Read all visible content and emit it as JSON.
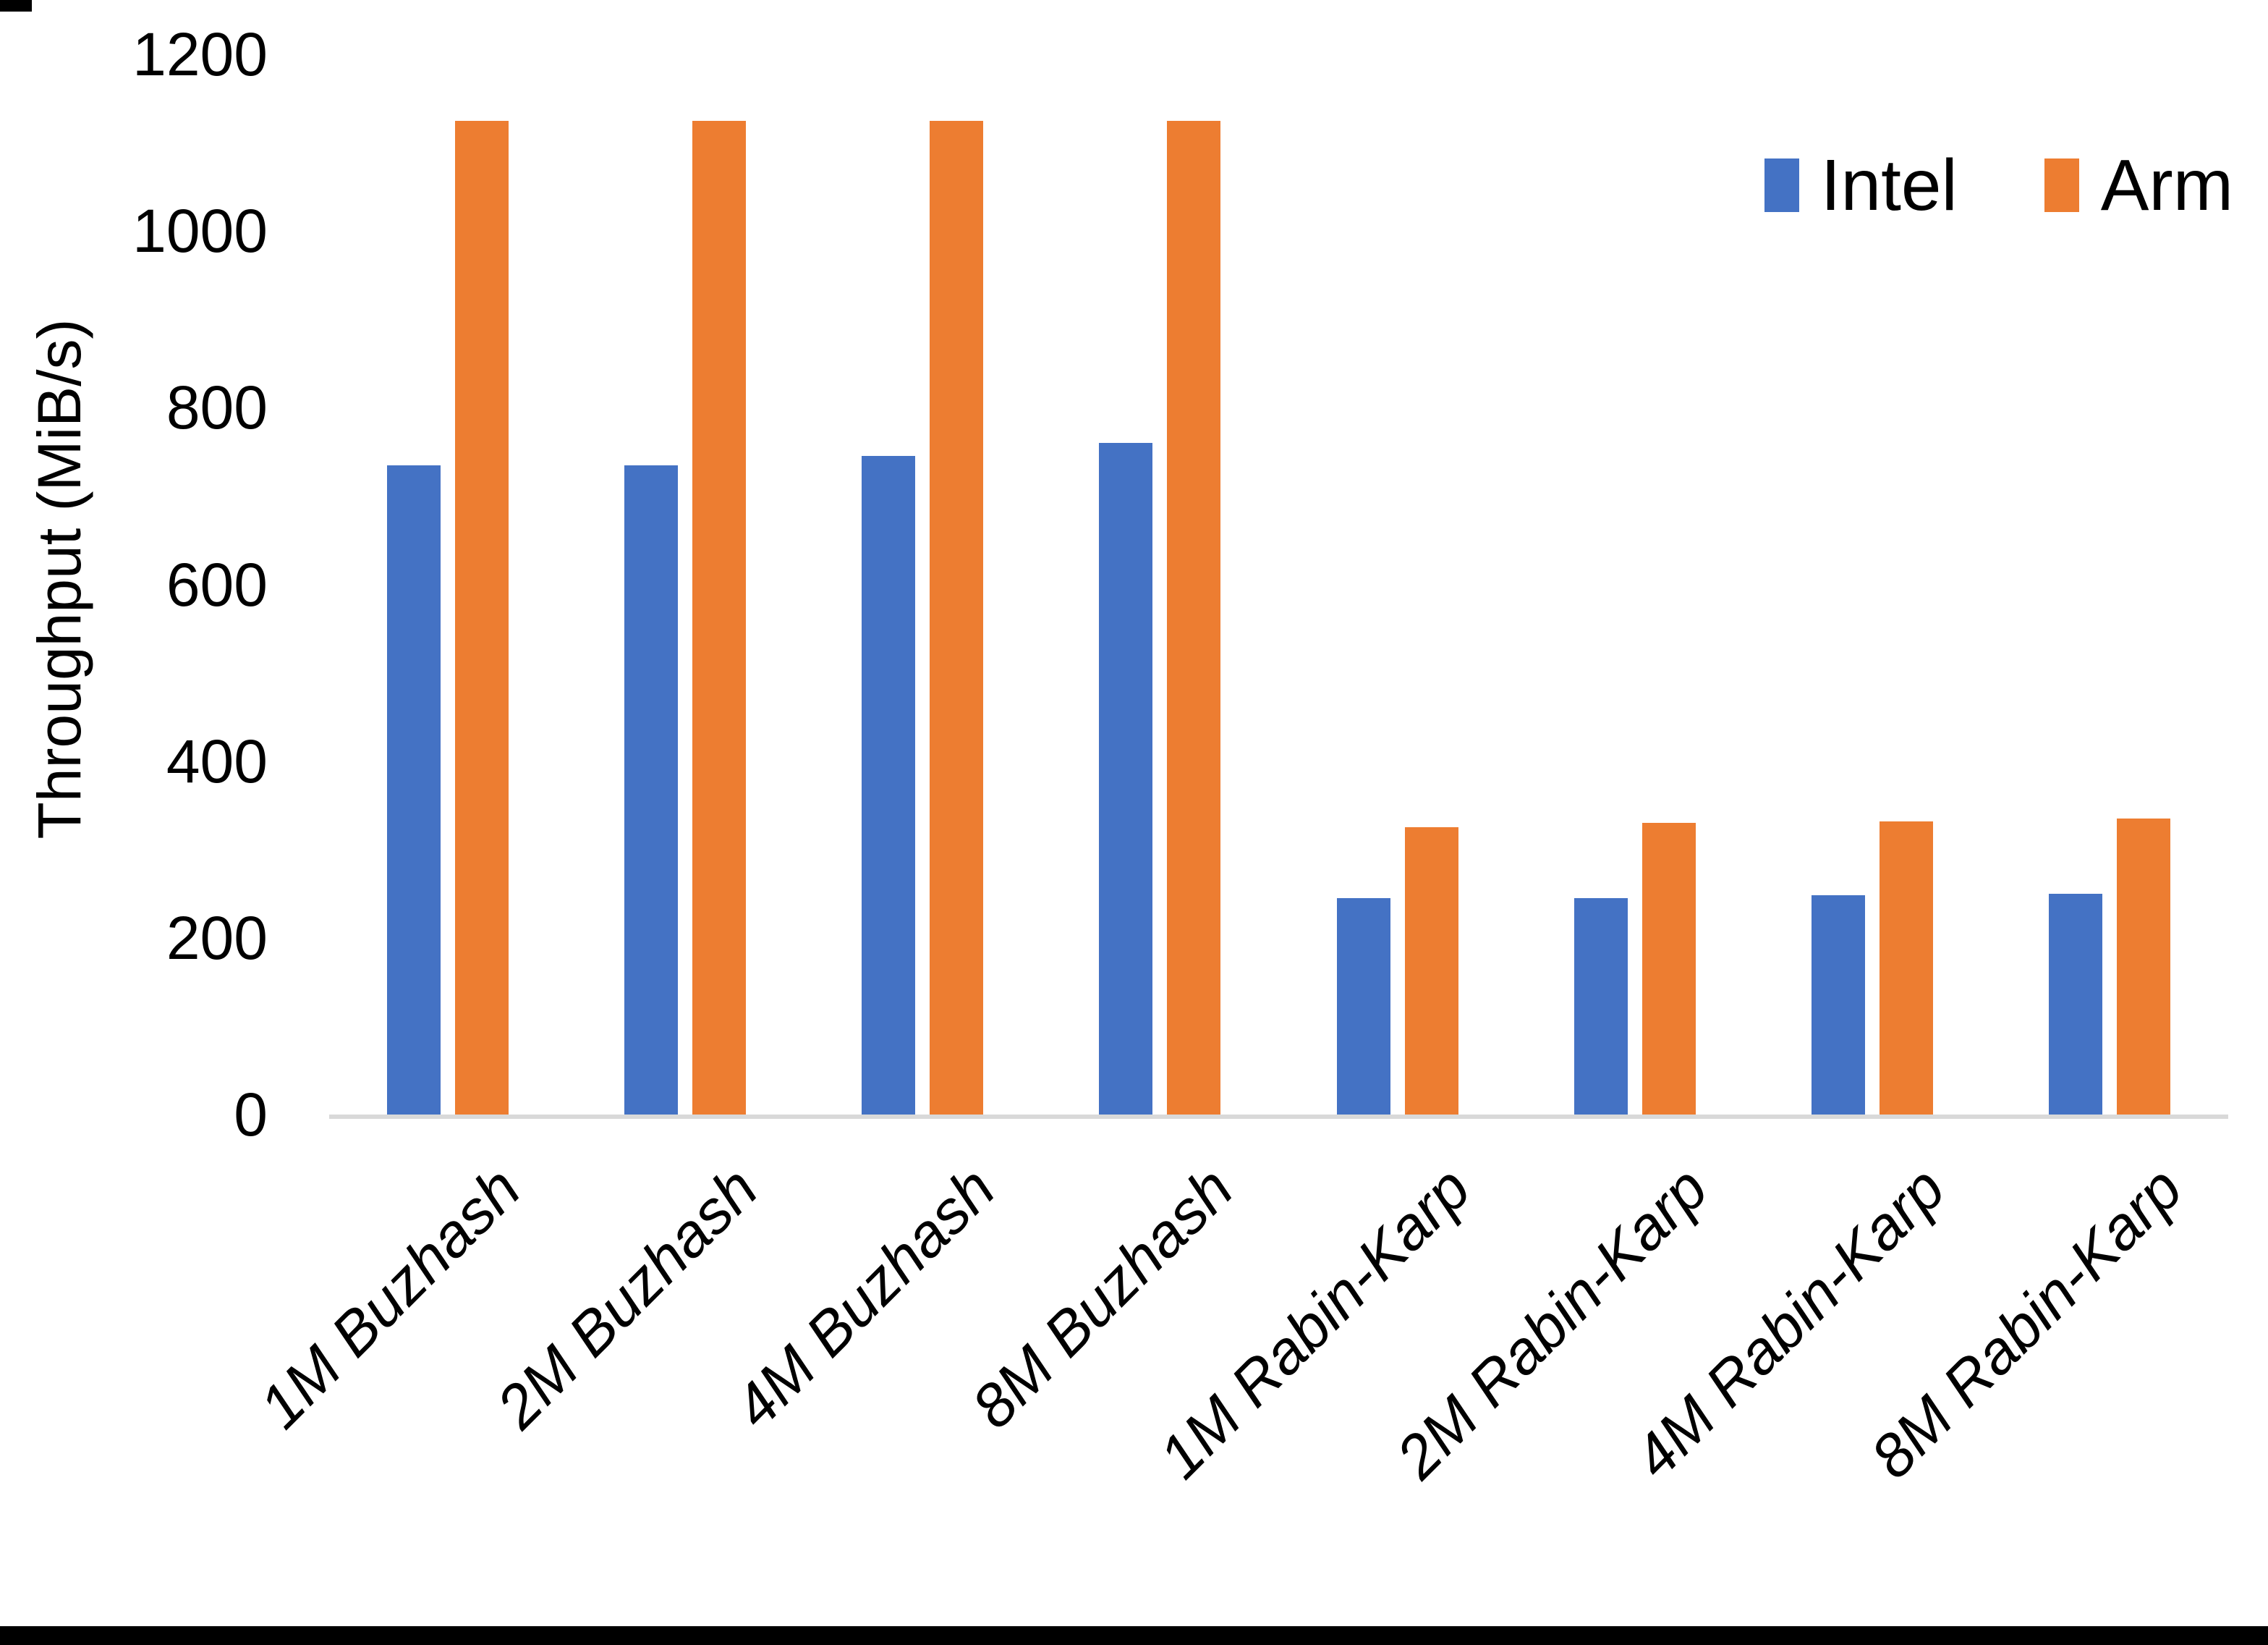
{
  "page": {
    "background": "#ffffff",
    "border_color": "#000000",
    "axis_line_color": "#d9d9d9"
  },
  "chart_data": {
    "type": "bar",
    "title": "",
    "xlabel": "",
    "ylabel": "Throughput (MiB/s)",
    "categories": [
      "1M Buzhash",
      "2M Buzhash",
      "4M Buzhash",
      "8M Buzhash",
      "1M Rabin-Karp",
      "2M Rabin-Karp",
      "4M Rabin-Karp",
      "8M Rabin-Karp"
    ],
    "series": [
      {
        "name": "Intel",
        "color": "#4472C4",
        "values": [
          735,
          735,
          745,
          760,
          245,
          245,
          248,
          250
        ]
      },
      {
        "name": "Arm",
        "color": "#ED7D31",
        "values": [
          1125,
          1125,
          1125,
          1125,
          325,
          330,
          332,
          335
        ]
      }
    ],
    "ylim": [
      0,
      1200
    ],
    "yticks": [
      0,
      200,
      400,
      600,
      800,
      1000,
      1200
    ],
    "grid": false,
    "legend_position": "top-right"
  }
}
